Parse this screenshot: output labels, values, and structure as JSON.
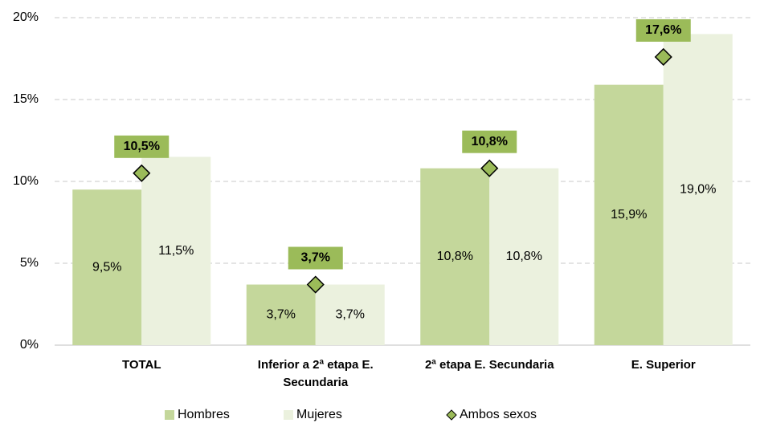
{
  "chart_data": {
    "type": "bar",
    "categories": [
      "TOTAL",
      "Inferior a 2ª etapa E. Secundaria",
      "2ª etapa E. Secundaria",
      "E. Superior"
    ],
    "series": [
      {
        "name": "Hombres",
        "color": "#c4d79b",
        "values": [
          9.5,
          3.7,
          10.8,
          15.9
        ],
        "value_labels": [
          "9,5%",
          "3,7%",
          "10,8%",
          "15,9%"
        ]
      },
      {
        "name": "Mujeres",
        "color": "#ebf1de",
        "values": [
          11.5,
          3.7,
          10.8,
          19.0
        ],
        "value_labels": [
          "11,5%",
          "3,7%",
          "10,8%",
          "19,0%"
        ]
      },
      {
        "name": "Ambos sexos",
        "type": "scatter",
        "color": "#9bbb59",
        "values": [
          10.5,
          3.7,
          10.8,
          17.6
        ],
        "value_labels": [
          "10,5%",
          "3,7%",
          "10,8%",
          "17,6%"
        ]
      }
    ],
    "ylim": [
      0,
      20
    ],
    "yticks": [
      {
        "value": 0,
        "label": "0%"
      },
      {
        "value": 5,
        "label": "5%"
      },
      {
        "value": 10,
        "label": "10%"
      },
      {
        "value": 15,
        "label": "15%"
      },
      {
        "value": 20,
        "label": "20%"
      }
    ],
    "grid": true
  }
}
